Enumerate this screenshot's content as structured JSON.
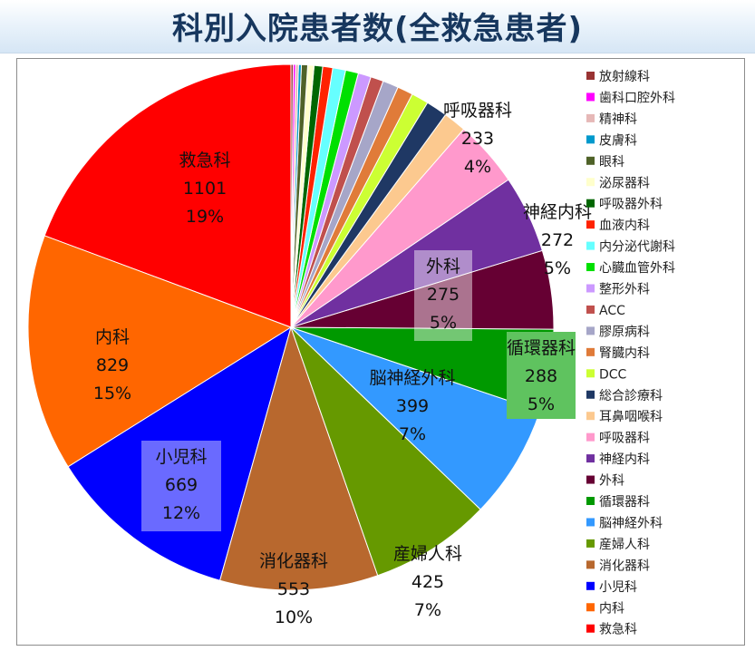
{
  "title": "科別入院患者数(全救急患者)",
  "chart_data": {
    "type": "pie",
    "legend_position": "right",
    "categories": [
      "救急科",
      "内科",
      "小児科",
      "消化器科",
      "産婦人科",
      "脳神経外科",
      "循環器科",
      "外科",
      "神経内科",
      "呼吸器科",
      "耳鼻咽喉科",
      "総合診療科",
      "DCC",
      "腎臓内科",
      "膠原病科",
      "ACC",
      "整形外科",
      "心臓血管外科",
      "内分泌代謝科",
      "血液内科",
      "呼吸器外科",
      "泌尿器科",
      "眼科",
      "皮膚科",
      "精神科",
      "歯科口腔外科",
      "放射線科"
    ],
    "values": [
      1101,
      829,
      669,
      553,
      425,
      399,
      288,
      275,
      272,
      233,
      80,
      75,
      60,
      55,
      55,
      45,
      45,
      45,
      45,
      35,
      30,
      22,
      22,
      10,
      10,
      8,
      8
    ],
    "colors": [
      "#ff0000",
      "#ff6600",
      "#0000ff",
      "#b8682e",
      "#669900",
      "#3399ff",
      "#009900",
      "#660033",
      "#7030a0",
      "#ff99cc",
      "#fcc98f",
      "#1f3864",
      "#ccff33",
      "#e07b39",
      "#a6a6c8",
      "#c0504d",
      "#cc99ff",
      "#00e000",
      "#66ffff",
      "#ff2200",
      "#006600",
      "#ffffcc",
      "#4f6228",
      "#0099cc",
      "#e6b8b7",
      "#ff00ff",
      "#993333"
    ],
    "data_labels": [
      {
        "name": "救急科",
        "value": "1101",
        "pct": "19%"
      },
      {
        "name": "内科",
        "value": "829",
        "pct": "15%"
      },
      {
        "name": "小児科",
        "value": "669",
        "pct": "12%"
      },
      {
        "name": "消化器科",
        "value": "553",
        "pct": "10%"
      },
      {
        "name": "産婦人科",
        "value": "425",
        "pct": "7%"
      },
      {
        "name": "脳神経外科",
        "value": "399",
        "pct": "7%"
      },
      {
        "name": "循環器科",
        "value": "288",
        "pct": "5%"
      },
      {
        "name": "外科",
        "value": "275",
        "pct": "5%"
      },
      {
        "name": "神経内科",
        "value": "272",
        "pct": "5%"
      },
      {
        "name": "呼吸器科",
        "value": "233",
        "pct": "4%"
      }
    ],
    "legend": [
      "放射線科",
      "歯科口腔外科",
      "精神科",
      "皮膚科",
      "眼科",
      "泌尿器科",
      "呼吸器外科",
      "血液内科",
      "内分泌代謝科",
      "心臓血管外科",
      "整形外科",
      "ACC",
      "膠原病科",
      "腎臓内科",
      "DCC",
      "総合診療科",
      "耳鼻咽喉科",
      "呼吸器科",
      "神経内科",
      "外科",
      "循環器科",
      "脳神経外科",
      "産婦人科",
      "消化器科",
      "小児科",
      "内科",
      "救急科"
    ]
  }
}
